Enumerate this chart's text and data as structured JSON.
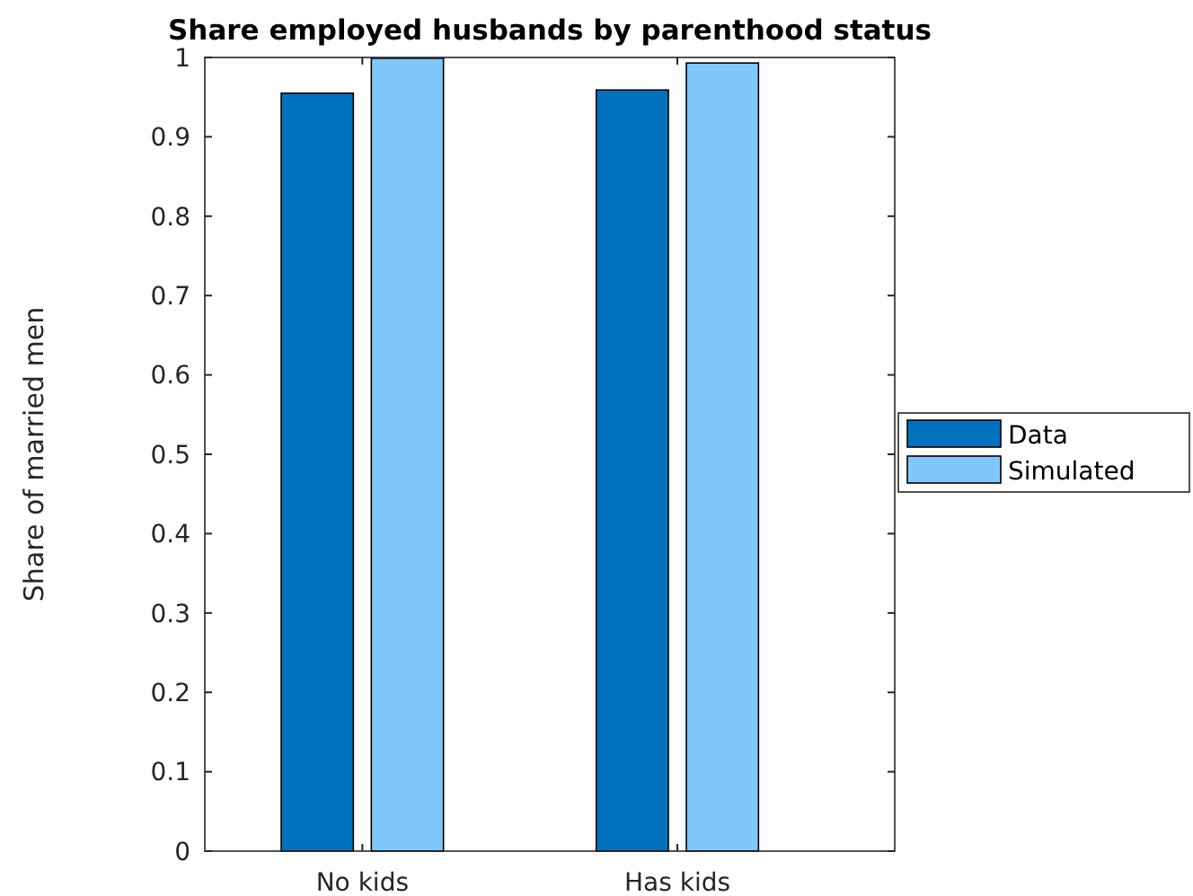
{
  "chart_data": {
    "type": "bar",
    "title": "Share employed husbands by parenthood status",
    "ylabel": "Share of married men",
    "categories": [
      "No kids",
      "Has kids"
    ],
    "series": [
      {
        "name": "Data",
        "color": "#0072bd",
        "values": [
          0.955,
          0.959
        ]
      },
      {
        "name": "Simulated",
        "color": "#80c8fb",
        "values": [
          0.999,
          0.993
        ]
      }
    ],
    "ylim": [
      0,
      1
    ],
    "yticks": [
      0,
      0.1,
      0.2,
      0.3,
      0.4,
      0.5,
      0.6,
      0.7,
      0.8,
      0.9,
      1
    ],
    "legend": "right",
    "grid": false
  }
}
